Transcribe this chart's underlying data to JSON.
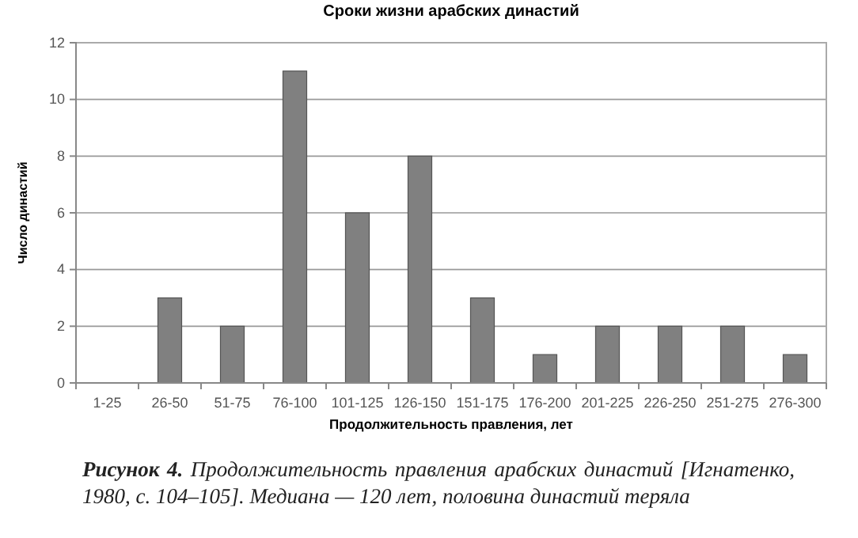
{
  "chart_data": {
    "type": "bar",
    "title": "Сроки жизни арабских династий",
    "xlabel": "Продолжительность правления, лет",
    "ylabel": "Число династий",
    "categories": [
      "1-25",
      "26-50",
      "51-75",
      "76-100",
      "101-125",
      "126-150",
      "151-175",
      "176-200",
      "201-225",
      "226-250",
      "251-275",
      "276-300"
    ],
    "values": [
      0,
      3,
      2,
      11,
      6,
      8,
      3,
      1,
      2,
      2,
      2,
      1
    ],
    "color": "#808080",
    "ylim": [
      0,
      12
    ],
    "yticks": [
      0,
      2,
      4,
      6,
      8,
      10,
      12
    ],
    "grid": "y",
    "annotations": [
      "Рисунок 4.",
      "Продолжительность правления арабских династий [Игнатенко, 1980, с. 104–105]. Медиана — 120 лет, половина династий теряла"
    ]
  }
}
